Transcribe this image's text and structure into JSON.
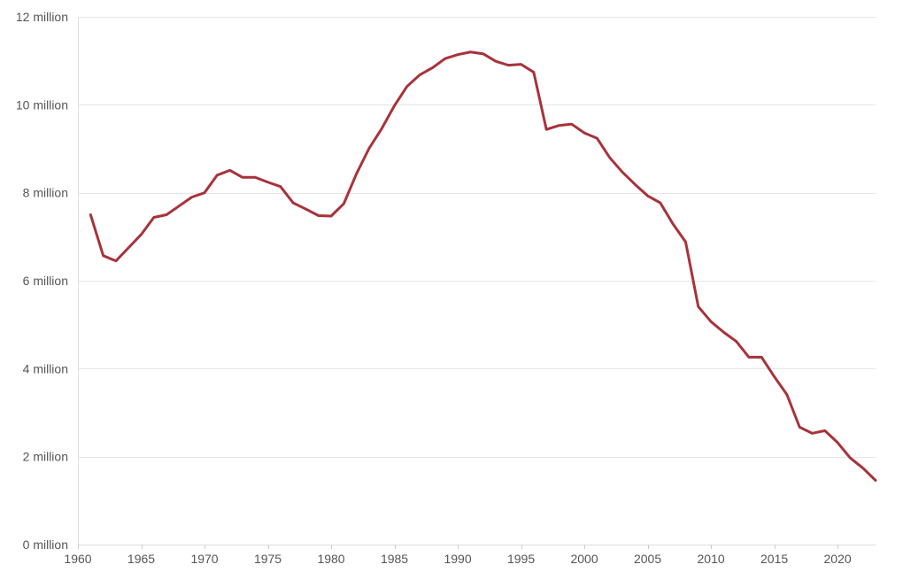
{
  "chart_data": {
    "type": "line",
    "title": "",
    "xlabel": "",
    "ylabel": "",
    "xlim": [
      1960,
      2023
    ],
    "ylim": [
      0,
      12000000
    ],
    "grid": true,
    "legend": "none",
    "y_ticks": [
      {
        "value": 0,
        "label": "0 million"
      },
      {
        "value": 2000000,
        "label": "2 million"
      },
      {
        "value": 4000000,
        "label": "4 million"
      },
      {
        "value": 6000000,
        "label": "6 million"
      },
      {
        "value": 8000000,
        "label": "8 million"
      },
      {
        "value": 10000000,
        "label": "10 million"
      },
      {
        "value": 12000000,
        "label": "12 million"
      }
    ],
    "x_ticks": [
      {
        "value": 1960,
        "label": "1960"
      },
      {
        "value": 1965,
        "label": "1965"
      },
      {
        "value": 1970,
        "label": "1970"
      },
      {
        "value": 1975,
        "label": "1975"
      },
      {
        "value": 1980,
        "label": "1980"
      },
      {
        "value": 1985,
        "label": "1985"
      },
      {
        "value": 1990,
        "label": "1990"
      },
      {
        "value": 1995,
        "label": "1995"
      },
      {
        "value": 2000,
        "label": "2000"
      },
      {
        "value": 2005,
        "label": "2005"
      },
      {
        "value": 2010,
        "label": "2010"
      },
      {
        "value": 2015,
        "label": "2015"
      },
      {
        "value": 2020,
        "label": "2020"
      }
    ],
    "series": [
      {
        "color": "#a8323a",
        "x": [
          1961,
          1962,
          1963,
          1964,
          1965,
          1966,
          1967,
          1968,
          1969,
          1970,
          1971,
          1972,
          1973,
          1974,
          1975,
          1976,
          1977,
          1978,
          1979,
          1980,
          1981,
          1982,
          1983,
          1984,
          1985,
          1986,
          1987,
          1988,
          1989,
          1990,
          1991,
          1992,
          1993,
          1994,
          1995,
          1996,
          1997,
          1998,
          1999,
          2000,
          2001,
          2002,
          2003,
          2004,
          2005,
          2006,
          2007,
          2008,
          2009,
          2010,
          2011,
          2012,
          2013,
          2014,
          2015,
          2016,
          2017,
          2018,
          2019,
          2020,
          2021,
          2022,
          2023
        ],
        "values": [
          7500000,
          6570000,
          6450000,
          6750000,
          7050000,
          7440000,
          7500000,
          7700000,
          7900000,
          8000000,
          8400000,
          8510000,
          8350000,
          8350000,
          8240000,
          8140000,
          7770000,
          7630000,
          7480000,
          7470000,
          7750000,
          8430000,
          9010000,
          9460000,
          9980000,
          10420000,
          10680000,
          10840000,
          11050000,
          11140000,
          11200000,
          11160000,
          10990000,
          10900000,
          10920000,
          10740000,
          9440000,
          9530000,
          9560000,
          9360000,
          9240000,
          8800000,
          8470000,
          8190000,
          7930000,
          7770000,
          7290000,
          6880000,
          5410000,
          5070000,
          4830000,
          4620000,
          4260000,
          4260000,
          3820000,
          3410000,
          2670000,
          2530000,
          2590000,
          2320000,
          1970000,
          1740000,
          1460000
        ]
      }
    ]
  }
}
